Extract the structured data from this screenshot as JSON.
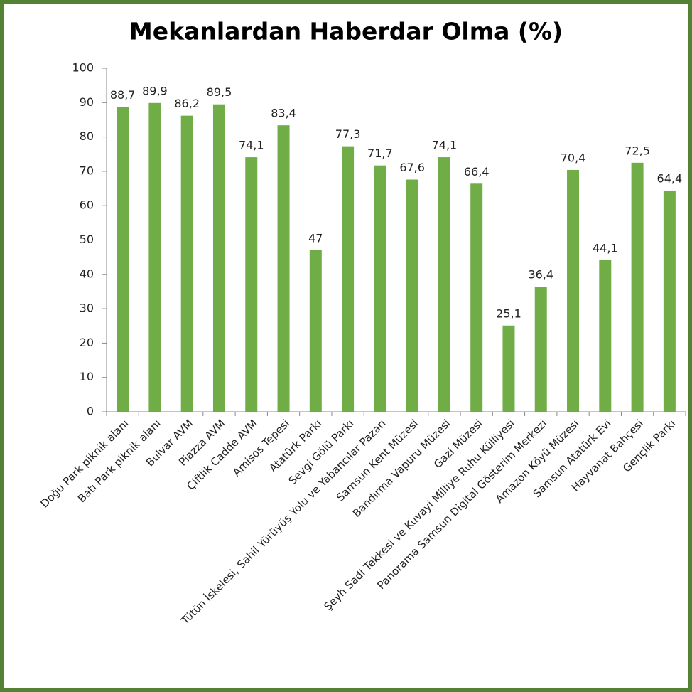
{
  "chart_data": {
    "type": "bar",
    "title": "Mekanlardan Haberdar Olma (%)",
    "categories": [
      "Doğu Park piknik alanı",
      "Batı Park piknik alanı",
      "Bulvar AVM",
      "Piazza AVM",
      "Çiftlik Cadde AVM",
      "Amisos Tepesi",
      "Atatürk Parkı",
      "Sevgi Gölü Parkı",
      "Tütün İskelesi, Sahil Yürüyüş Yolu ve Yabancılar Pazarı",
      "Samsun Kent Müzesi",
      "Bandırma Vapuru Müzesi",
      "Gazi Müzesi",
      "Şeyh Sadi Tekkesi ve Kuvayi Milliye Ruhu Külliyesi",
      "Panorama Samsun Digital Gösterim Merkezi",
      "Amazon Köyü Müzesi",
      "Samsun Atatürk Evi",
      "Hayvanat Bahçesi",
      "Gençlik Parkı"
    ],
    "values": [
      88.7,
      89.9,
      86.2,
      89.5,
      74.1,
      83.4,
      47,
      77.3,
      71.7,
      67.6,
      74.1,
      66.4,
      25.1,
      36.4,
      70.4,
      44.1,
      72.5,
      64.4
    ],
    "value_labels": [
      "88,7",
      "89,9",
      "86,2",
      "89,5",
      "74,1",
      "83,4",
      "47",
      "77,3",
      "71,7",
      "67,6",
      "74,1",
      "66,4",
      "25,1",
      "36,4",
      "70,4",
      "44,1",
      "72,5",
      "64,4"
    ],
    "color": "#70ad47",
    "ylim": [
      0,
      100
    ],
    "yticks": [
      0,
      10,
      20,
      30,
      40,
      50,
      60,
      70,
      80,
      90,
      100
    ],
    "grid": false
  }
}
